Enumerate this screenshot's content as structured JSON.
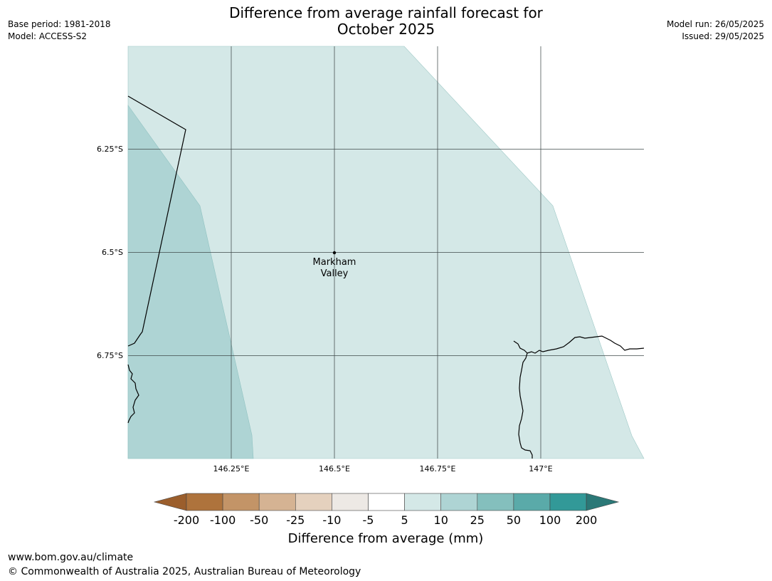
{
  "header": {
    "title_line1": "Difference from average rainfall forecast for",
    "title_line2": "October 2025",
    "base_period": "Base period: 1981-2018",
    "model": "Model: ACCESS-S2",
    "model_run": "Model run: 26/05/2025",
    "issued": "Issued: 29/05/2025"
  },
  "map": {
    "lat_labels": [
      "6.25°S",
      "6.5°S",
      "6.75°S"
    ],
    "lon_labels": [
      "146.25°E",
      "146.5°E",
      "146.75°E",
      "147°E"
    ],
    "place": {
      "line1": "Markham",
      "line2": "Valley"
    },
    "region_colors": {
      "light": "#d4e8e7",
      "medium": "#aed4d4"
    }
  },
  "colorbar": {
    "title": "Difference from average (mm)",
    "ticks": [
      "-200",
      "-100",
      "-50",
      "-25",
      "-10",
      "-5",
      "5",
      "10",
      "25",
      "50",
      "100",
      "200"
    ],
    "colors": [
      "#9b5e2c",
      "#ae733c",
      "#c39467",
      "#d5b393",
      "#e5d1be",
      "#ede9e5",
      "#ffffff",
      "#d4e8e7",
      "#aed4d4",
      "#84bfbd",
      "#5aaaa9",
      "#329998",
      "#2b7877"
    ]
  },
  "footer": {
    "url": "www.bom.gov.au/climate",
    "copyright": "© Commonwealth of Australia 2025, Australian Bureau of Meteorology"
  }
}
